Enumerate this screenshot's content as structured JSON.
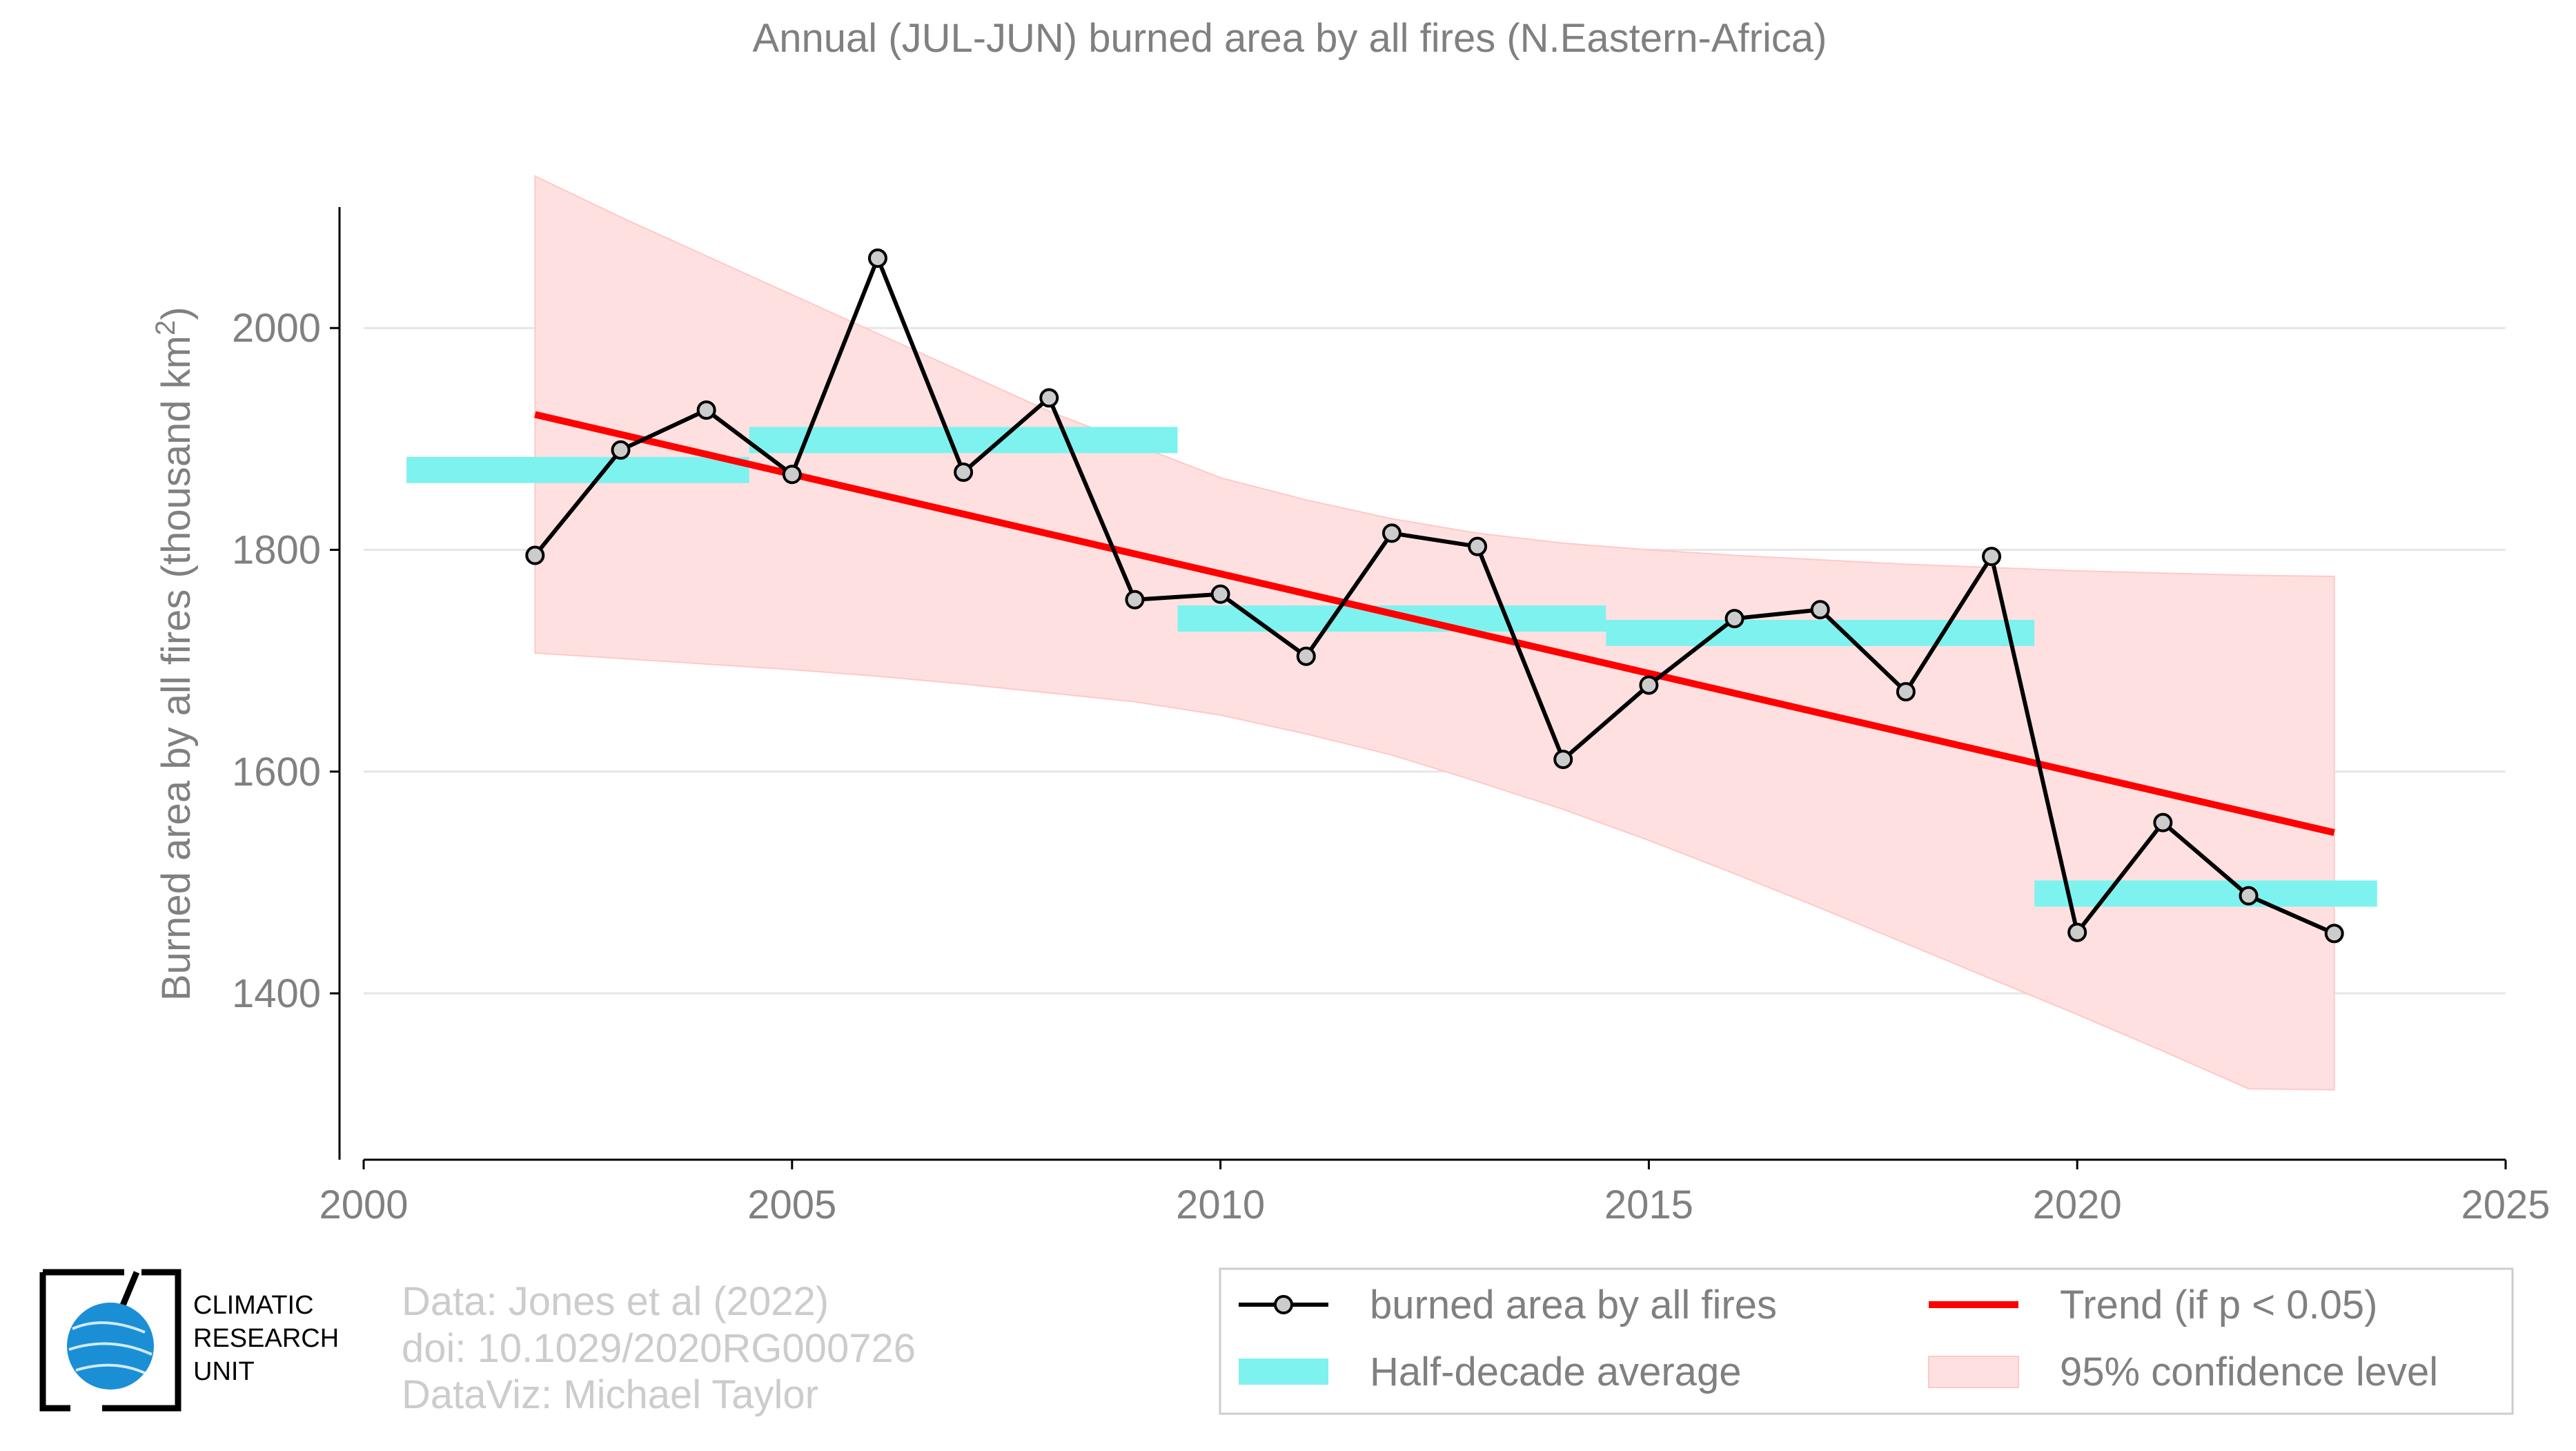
{
  "chart_data": {
    "type": "line",
    "title": "Annual (JUL-JUN) burned area by all fires (N.Eastern-Africa)",
    "ylabel_main": "Burned area by all fires (thousand km",
    "ylabel_sup": "2",
    "ylabel_tail": ")",
    "xlim": [
      2000,
      2025
    ],
    "ylim": [
      1250,
      2190
    ],
    "xticks": [
      2000,
      2005,
      2010,
      2015,
      2020,
      2025
    ],
    "yticks": [
      1400,
      1600,
      1800,
      2000
    ],
    "grid": "horizontal",
    "legend_position": "bottom-right",
    "series": [
      {
        "name": "burned area by all fires",
        "kind": "line-markers",
        "color": "#000000",
        "marker_fill": "#cccccc",
        "x": [
          2002,
          2003,
          2004,
          2005,
          2006,
          2007,
          2008,
          2009,
          2010,
          2011,
          2012,
          2013,
          2014,
          2015,
          2016,
          2017,
          2018,
          2019,
          2020,
          2021,
          2022,
          2023
        ],
        "y": [
          1795,
          1890,
          1926,
          1868,
          2063,
          1870,
          1937,
          1755,
          1760,
          1704,
          1815,
          1803,
          1611,
          1678,
          1738,
          1746,
          1672,
          1794,
          1455,
          1554,
          1488,
          1454
        ]
      },
      {
        "name": "Half-decade average",
        "kind": "segments",
        "color": "#7ef2ef",
        "segments": [
          {
            "x0": 2000.5,
            "x1": 2004.5,
            "y": 1872
          },
          {
            "x0": 2004.5,
            "x1": 2009.5,
            "y": 1899
          },
          {
            "x0": 2009.5,
            "x1": 2014.5,
            "y": 1738
          },
          {
            "x0": 2014.5,
            "x1": 2019.5,
            "y": 1725
          },
          {
            "x0": 2019.5,
            "x1": 2023.5,
            "y": 1490
          }
        ]
      },
      {
        "name": "Trend (if p < 0.05)",
        "kind": "line",
        "color": "#ff0000",
        "x": [
          2002,
          2023
        ],
        "y": [
          1922,
          1545
        ]
      },
      {
        "name": "95% confidence level",
        "kind": "band",
        "color": "#ffe0e0",
        "x": [
          2002,
          2003,
          2004,
          2005,
          2006,
          2007,
          2008,
          2009,
          2010,
          2011,
          2012,
          2013,
          2014,
          2015,
          2016,
          2017,
          2018,
          2019,
          2020,
          2021,
          2022,
          2023
        ],
        "upper": [
          2137,
          2100,
          2065,
          2030,
          1995,
          1960,
          1925,
          1895,
          1865,
          1845,
          1828,
          1815,
          1806,
          1800,
          1795,
          1791,
          1787,
          1784,
          1781,
          1779,
          1777,
          1776
        ],
        "lower": [
          1707,
          1702,
          1697,
          1692,
          1686,
          1679,
          1671,
          1663,
          1651,
          1634,
          1615,
          1591,
          1566,
          1538,
          1508,
          1477,
          1445,
          1413,
          1381,
          1348,
          1314,
          1313
        ]
      }
    ]
  },
  "legend": {
    "items": [
      {
        "label": "burned area by all fires"
      },
      {
        "label": "Trend (if p < 0.05)"
      },
      {
        "label": "Half-decade average"
      },
      {
        "label": "95% confidence level"
      }
    ]
  },
  "credits": {
    "line1": "Data: Jones et al (2022)",
    "line2": "doi: 10.1029/2020RG000726",
    "line3": "DataViz: Michael Taylor"
  },
  "logo": {
    "line1": "CLIMATIC",
    "line2": "RESEARCH",
    "line3": "UNIT",
    "colors": {
      "globe": "#1a8fd6",
      "frame": "#000000"
    }
  }
}
